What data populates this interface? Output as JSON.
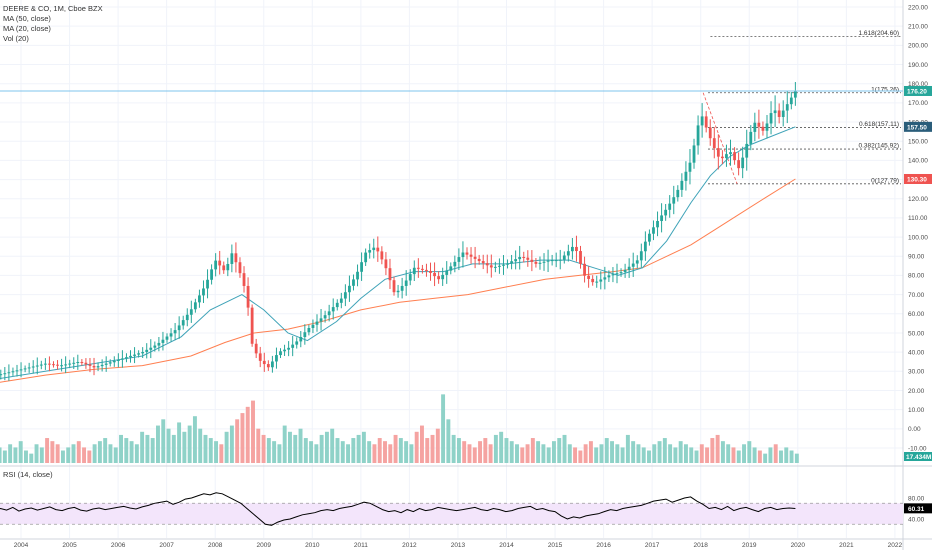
{
  "chart_data": {
    "type": "candlestick",
    "title": "DEERE & CO, 1M, Cboe BZX",
    "legend": [
      "DEERE & CO, 1M, Cboe BZX",
      "MA (50, close)",
      "MA (20, close)",
      "Vol (20)"
    ],
    "x_ticks": [
      "2004",
      "2005",
      "2006",
      "2007",
      "2008",
      "2009",
      "2010",
      "2011",
      "2012",
      "2013",
      "2014",
      "2015",
      "2016",
      "2017",
      "2018",
      "2019",
      "2020",
      "2021",
      "2022"
    ],
    "price_ticks": [
      220,
      210,
      200,
      190,
      180,
      170,
      160,
      150,
      140,
      130,
      120,
      110,
      100,
      90,
      80,
      70,
      60,
      50,
      40,
      30,
      20,
      10,
      0,
      -10
    ],
    "price_tick_labels": [
      "220.00",
      "210.00",
      "200.00",
      "190.00",
      "180.00",
      "170.00",
      "160.00",
      "150.00",
      "140.00",
      "130.00",
      "120.00",
      "110.00",
      "100.00",
      "90.00",
      "80.00",
      "70.00",
      "60.00",
      "50.00",
      "40.00",
      "30.00",
      "20.00",
      "10.00",
      "0.00",
      "-10.00"
    ],
    "close_series": {
      "name": "close",
      "points": [
        [
          2003.5,
          28
        ],
        [
          2004.0,
          31
        ],
        [
          2004.5,
          34
        ],
        [
          2004.8,
          33
        ],
        [
          2005.2,
          35
        ],
        [
          2005.5,
          32
        ],
        [
          2006.0,
          36
        ],
        [
          2006.5,
          40
        ],
        [
          2006.8,
          44
        ],
        [
          2007.2,
          52
        ],
        [
          2007.5,
          62
        ],
        [
          2007.8,
          75
        ],
        [
          2008.0,
          88
        ],
        [
          2008.2,
          82
        ],
        [
          2008.35,
          92
        ],
        [
          2008.5,
          82
        ],
        [
          2008.65,
          70
        ],
        [
          2008.75,
          45
        ],
        [
          2008.9,
          36
        ],
        [
          2009.1,
          32
        ],
        [
          2009.3,
          40
        ],
        [
          2009.5,
          42
        ],
        [
          2009.7,
          46
        ],
        [
          2009.9,
          52
        ],
        [
          2010.1,
          56
        ],
        [
          2010.3,
          60
        ],
        [
          2010.6,
          68
        ],
        [
          2010.9,
          80
        ],
        [
          2011.1,
          92
        ],
        [
          2011.3,
          95
        ],
        [
          2011.5,
          85
        ],
        [
          2011.7,
          70
        ],
        [
          2011.9,
          76
        ],
        [
          2012.1,
          84
        ],
        [
          2012.4,
          82
        ],
        [
          2012.6,
          78
        ],
        [
          2012.9,
          86
        ],
        [
          2013.1,
          92
        ],
        [
          2013.4,
          88
        ],
        [
          2013.7,
          84
        ],
        [
          2014.0,
          86
        ],
        [
          2014.3,
          90
        ],
        [
          2014.6,
          86
        ],
        [
          2014.9,
          88
        ],
        [
          2015.1,
          88
        ],
        [
          2015.4,
          96
        ],
        [
          2015.6,
          80
        ],
        [
          2015.8,
          76
        ],
        [
          2016.1,
          80
        ],
        [
          2016.4,
          82
        ],
        [
          2016.7,
          88
        ],
        [
          2016.9,
          100
        ],
        [
          2017.1,
          108
        ],
        [
          2017.3,
          115
        ],
        [
          2017.5,
          123
        ],
        [
          2017.8,
          140
        ],
        [
          2018.0,
          165
        ],
        [
          2018.1,
          158
        ],
        [
          2018.25,
          148
        ],
        [
          2018.4,
          140
        ],
        [
          2018.6,
          145
        ],
        [
          2018.8,
          135
        ],
        [
          2018.9,
          145
        ],
        [
          2019.1,
          160
        ],
        [
          2019.3,
          155
        ],
        [
          2019.5,
          168
        ],
        [
          2019.6,
          162
        ],
        [
          2019.8,
          170
        ],
        [
          2019.95,
          176.2
        ]
      ]
    },
    "ma50_series": {
      "name": "MA (50, close)",
      "points": [
        [
          2003.5,
          24
        ],
        [
          2004.5,
          28
        ],
        [
          2005.5,
          31
        ],
        [
          2006.5,
          33
        ],
        [
          2007.5,
          38
        ],
        [
          2008.2,
          45
        ],
        [
          2008.8,
          50
        ],
        [
          2009.5,
          52
        ],
        [
          2010.2,
          56
        ],
        [
          2011.0,
          62
        ],
        [
          2011.8,
          66
        ],
        [
          2012.5,
          68
        ],
        [
          2013.2,
          70
        ],
        [
          2014.0,
          74
        ],
        [
          2014.8,
          78
        ],
        [
          2015.5,
          80
        ],
        [
          2016.2,
          82
        ],
        [
          2016.8,
          84
        ],
        [
          2017.3,
          90
        ],
        [
          2017.8,
          96
        ],
        [
          2018.3,
          104
        ],
        [
          2018.8,
          112
        ],
        [
          2019.3,
          120
        ],
        [
          2019.95,
          130.3
        ]
      ]
    },
    "ma20_series": {
      "name": "MA (20, close)",
      "points": [
        [
          2003.5,
          26
        ],
        [
          2004.5,
          30
        ],
        [
          2005.5,
          34
        ],
        [
          2006.5,
          38
        ],
        [
          2007.3,
          48
        ],
        [
          2007.9,
          62
        ],
        [
          2008.55,
          70
        ],
        [
          2009.0,
          62
        ],
        [
          2009.5,
          50
        ],
        [
          2009.9,
          46
        ],
        [
          2010.5,
          56
        ],
        [
          2011.0,
          68
        ],
        [
          2011.5,
          78
        ],
        [
          2012.1,
          82
        ],
        [
          2012.7,
          82
        ],
        [
          2013.3,
          86
        ],
        [
          2014.0,
          86
        ],
        [
          2014.7,
          88
        ],
        [
          2015.3,
          88
        ],
        [
          2015.8,
          84
        ],
        [
          2016.3,
          80
        ],
        [
          2016.8,
          84
        ],
        [
          2017.3,
          98
        ],
        [
          2017.8,
          118
        ],
        [
          2018.2,
          132
        ],
        [
          2018.6,
          142
        ],
        [
          2019.0,
          148
        ],
        [
          2019.4,
          152
        ],
        [
          2019.95,
          157.5
        ]
      ]
    },
    "volume_ticks": [
      0,
      10,
      20
    ],
    "volume_series": {
      "name": "Vol (20)",
      "last_value_label": "17.434M",
      "values": [
        3,
        5,
        4,
        6,
        5,
        7,
        4,
        3,
        6,
        5,
        8,
        7,
        6,
        4,
        5,
        6,
        7,
        5,
        4,
        6,
        7,
        8,
        6,
        5,
        9,
        8,
        7,
        6,
        10,
        9,
        8,
        12,
        14,
        11,
        9,
        13,
        10,
        12,
        15,
        11,
        9,
        8,
        7,
        6,
        10,
        12,
        14,
        16,
        18,
        20,
        11,
        9,
        8,
        7,
        6,
        12,
        10,
        9,
        11,
        8,
        7,
        6,
        9,
        10,
        11,
        8,
        7,
        6,
        8,
        9,
        10,
        7,
        6,
        8,
        7,
        6,
        9,
        8,
        7,
        6,
        10,
        12,
        8,
        9,
        11,
        22,
        14,
        9,
        8,
        7,
        6,
        5,
        7,
        8,
        6,
        9,
        10,
        8,
        7,
        6,
        5,
        6,
        8,
        7,
        6,
        5,
        7,
        8,
        9,
        6,
        5,
        4,
        6,
        7,
        5,
        6,
        8,
        7,
        6,
        5,
        9,
        7,
        6,
        5,
        4,
        6,
        7,
        8,
        6,
        5,
        7,
        6,
        5,
        4,
        6,
        5,
        8,
        9,
        7,
        6,
        5,
        4,
        6,
        7,
        5,
        4,
        3,
        5,
        6,
        4,
        5,
        4,
        3
      ]
    },
    "fib_levels": [
      {
        "label": "1.618(204.60)",
        "value": 204.6
      },
      {
        "label": "1(175.26)",
        "value": 175.26
      },
      {
        "label": "0.618(157.11)",
        "value": 157.11
      },
      {
        "label": "0.382(145.92)",
        "value": 145.92
      },
      {
        "label": "0(127.79)",
        "value": 127.79
      }
    ],
    "price_badges": [
      {
        "label": "176.20",
        "value": 176.2,
        "color": "#26a69a"
      },
      {
        "label": "157.50",
        "value": 157.5,
        "color": "#2a5d7a"
      },
      {
        "label": "130.30",
        "value": 130.3,
        "color": "#ef5350"
      }
    ],
    "rsi": {
      "title": "RSI (14, close)",
      "ticks": [
        80,
        40
      ],
      "tick_labels": [
        "80.00",
        "40.00"
      ],
      "band": [
        30,
        70
      ],
      "last_value_label": "60.31",
      "values": [
        58,
        60,
        57,
        62,
        55,
        59,
        61,
        57,
        60,
        63,
        58,
        56,
        60,
        62,
        57,
        55,
        59,
        61,
        58,
        60,
        62,
        64,
        61,
        59,
        63,
        66,
        70,
        72,
        74,
        68,
        72,
        78,
        80,
        84,
        88,
        86,
        90,
        88,
        82,
        76,
        70,
        60,
        50,
        40,
        30,
        28,
        34,
        38,
        40,
        44,
        48,
        50,
        52,
        56,
        58,
        56,
        60,
        62,
        64,
        68,
        72,
        70,
        64,
        58,
        54,
        56,
        52,
        58,
        54,
        60,
        56,
        58,
        62,
        60,
        58,
        56,
        58,
        60,
        62,
        58,
        56,
        60,
        58,
        54,
        56,
        60,
        62,
        64,
        58,
        60,
        56,
        54,
        46,
        40,
        44,
        42,
        46,
        48,
        50,
        54,
        58,
        56,
        60,
        62,
        64,
        66,
        70,
        74,
        76,
        78,
        72,
        76,
        80,
        82,
        74,
        68,
        60,
        62,
        58,
        64,
        56,
        60,
        62,
        58,
        54,
        60,
        62,
        58,
        60,
        61,
        60
      ]
    }
  }
}
